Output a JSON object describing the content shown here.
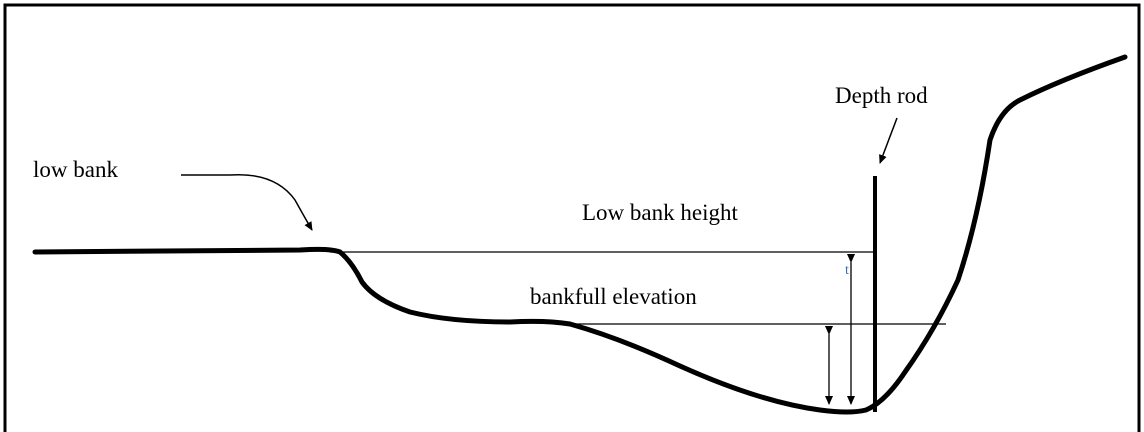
{
  "labels": {
    "depth_rod": "Depth rod",
    "low_bank": "low bank",
    "low_bank_height": "Low bank height",
    "bankfull_elevation": "bankfull elevation",
    "stray_mark": "t"
  }
}
